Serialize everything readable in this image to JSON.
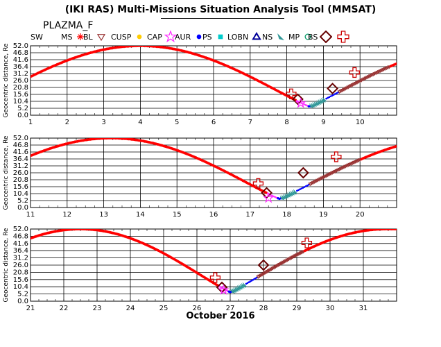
{
  "title": "(IKI RAS) Multi-Missions Situation Analysis Tool (MMSAT)",
  "subtitle": "PLAZMA_F",
  "legend": [
    {
      "label": "SW",
      "symbol": "none",
      "color": "#ff0000"
    },
    {
      "label": "MS",
      "symbol": "star",
      "color": "#ff0000"
    },
    {
      "label": "BL",
      "symbol": "tri-down",
      "color": "#993333"
    },
    {
      "label": "CUSP",
      "symbol": "dot",
      "color": "#ffcc00"
    },
    {
      "label": "CAP",
      "symbol": "big-star",
      "color": "#ff33ff"
    },
    {
      "label": "AUR",
      "symbol": "dot",
      "color": "#0000ff"
    },
    {
      "label": "PS",
      "symbol": "square",
      "color": "#00cccc"
    },
    {
      "label": "LOBN",
      "symbol": "tri-up",
      "color": "#000099"
    },
    {
      "label": "NS",
      "symbol": "wedge",
      "color": "#339999"
    },
    {
      "label": "MP",
      "symbol": "circle",
      "color": "#009966"
    },
    {
      "label": "BS",
      "symbol": "diamond",
      "color": "#660000"
    },
    {
      "label": "",
      "symbol": "cross",
      "color": "#cc0000"
    }
  ],
  "chart_data": [
    {
      "type": "scatter",
      "ylabel": "Geocentric distance, Re",
      "ylim": [
        0,
        52
      ],
      "xlim": [
        1,
        11
      ],
      "xticks": [
        "1",
        "2",
        "3",
        "4",
        "5",
        "6",
        "7",
        "8",
        "9",
        "10"
      ],
      "yticks": [
        "0.0",
        "5.2",
        "10.4",
        "15.6",
        "20.8",
        "26.0",
        "31.2",
        "36.4",
        "41.6",
        "46.8",
        "52.0"
      ],
      "grid": true,
      "apogee_day": 4.0,
      "perigee_day": 8.62,
      "next_apogee_day": 13.2,
      "boundaries": [
        {
          "type": "BS",
          "day": 8.3,
          "r": 12
        },
        {
          "type": "BS",
          "day": 9.25,
          "r": 20
        },
        {
          "type": "cross",
          "day": 8.12,
          "r": 16
        },
        {
          "type": "cross",
          "day": 9.85,
          "r": 32
        },
        {
          "type": "CAP",
          "day": 8.38,
          "r": 9
        }
      ]
    },
    {
      "type": "scatter",
      "ylabel": "Geocentric distance, Re",
      "ylim": [
        0,
        52
      ],
      "xlim": [
        11,
        21
      ],
      "xticks": [
        "11",
        "12",
        "13",
        "14",
        "15",
        "16",
        "17",
        "18",
        "19",
        "20"
      ],
      "yticks": [
        "0.0",
        "5.2",
        "10.4",
        "15.6",
        "20.8",
        "26.0",
        "31.2",
        "36.4",
        "41.6",
        "46.8",
        "52.0"
      ],
      "grid": true,
      "apogee_day": 13.2,
      "perigee_day": 17.8,
      "next_apogee_day": 22.5,
      "boundaries": [
        {
          "type": "BS",
          "day": 17.45,
          "r": 11
        },
        {
          "type": "BS",
          "day": 18.45,
          "r": 26
        },
        {
          "type": "cross",
          "day": 17.22,
          "r": 18
        },
        {
          "type": "cross",
          "day": 19.35,
          "r": 38
        },
        {
          "type": "CAP",
          "day": 17.5,
          "r": 7
        }
      ]
    },
    {
      "type": "scatter",
      "ylabel": "Geocentric distance, Re",
      "ylim": [
        0,
        52
      ],
      "xlim": [
        21,
        32
      ],
      "xticks": [
        "21",
        "22",
        "23",
        "24",
        "25",
        "26",
        "27",
        "28",
        "29",
        "30",
        "31"
      ],
      "yticks": [
        "0.0",
        "5.2",
        "10.4",
        "15.6",
        "20.8",
        "26.0",
        "31.2",
        "36.4",
        "41.6",
        "46.8",
        "52.0"
      ],
      "xlabel": "October 2016",
      "grid": true,
      "apogee_day": 22.5,
      "perigee_day": 27.0,
      "next_apogee_day": 31.7,
      "boundaries": [
        {
          "type": "BS",
          "day": 26.75,
          "r": 10
        },
        {
          "type": "BS",
          "day": 28.0,
          "r": 26
        },
        {
          "type": "cross",
          "day": 26.55,
          "r": 17
        },
        {
          "type": "cross",
          "day": 29.3,
          "r": 42
        },
        {
          "type": "CAP",
          "day": 26.8,
          "r": 8
        }
      ]
    }
  ]
}
